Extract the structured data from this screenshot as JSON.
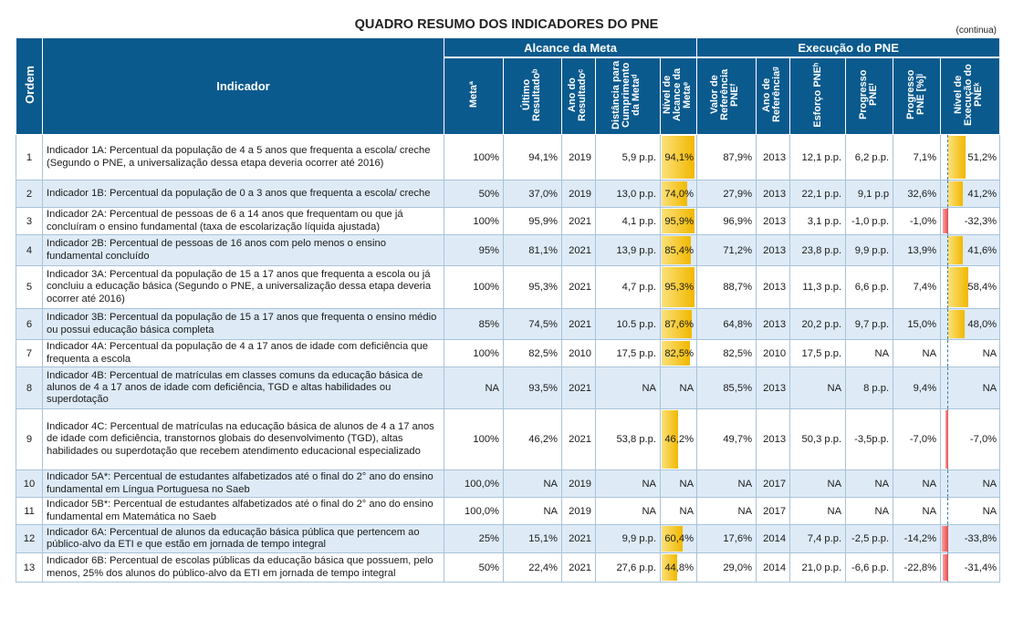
{
  "title": "QUADRO RESUMO DOS INDICADORES DO PNE",
  "continua": "(continua)",
  "headers": {
    "ordem": "Ordem",
    "indicador": "Indicador",
    "alcance_group": "Alcance da Meta",
    "execucao_group": "Execução do PNE",
    "meta": "Metaª",
    "ultimo": "Último Resultadoᵇ",
    "ano": "Ano do Resultadoᶜ",
    "distancia": "Distância para Cumprimento da Metaᵈ",
    "nivel_alcance": "Nível de Alcance da Metaᵉ",
    "valor_ref": "Valor de Referência PNEᶠ",
    "ano_ref": "Ano de Referênciaᵍ",
    "esforco": "Esforço PNEʰ",
    "progresso": "Progresso PNEⁱ",
    "progresso_pct": "Progresso PNE [%]ʲ",
    "nivel_exec": "Nível de Execução do PNEᵏ"
  },
  "colors": {
    "header_bg": "#0b5a8e",
    "alt_row": "#deebf7",
    "bar_yellow": "#f1b800",
    "bar_red": "#e84b4b"
  },
  "rows": [
    {
      "ordem": "1",
      "indicador": "Indicador 1A: Percentual da população de 4 a 5 anos que frequenta a escola/ creche (Segundo o PNE, a universalização dessa etapa deveria ocorrer até 2016)",
      "meta": "100%",
      "ultimo": "94,1%",
      "ano": "2019",
      "dist": "5,9 p.p.",
      "nivel": "94,1%",
      "nivel_frac": 0.941,
      "valor_ref": "87,9%",
      "ano_ref": "2013",
      "esforco": "12,1 p.p.",
      "progresso": "6,2 p.p.",
      "progresso_pct": "7,1%",
      "nivel_exec": "51,2%",
      "exec_frac": 0.512
    },
    {
      "ordem": "2",
      "indicador": "Indicador 1B: Percentual da população de 0 a 3 anos que frequenta a escola/ creche",
      "meta": "50%",
      "ultimo": "37,0%",
      "ano": "2019",
      "dist": "13,0 p.p.",
      "nivel": "74,0%",
      "nivel_frac": 0.74,
      "valor_ref": "27,9%",
      "ano_ref": "2013",
      "esforco": "22,1 p.p.",
      "progresso": "9,1 p.p",
      "progresso_pct": "32,6%",
      "nivel_exec": "41,2%",
      "exec_frac": 0.412
    },
    {
      "ordem": "3",
      "indicador": "Indicador 2A: Percentual de pessoas de 6 a 14 anos que frequentam ou que já concluíram o ensino fundamental (taxa de escolarização líquida ajustada)",
      "meta": "100%",
      "ultimo": "95,9%",
      "ano": "2021",
      "dist": "4,1 p.p.",
      "nivel": "95,9%",
      "nivel_frac": 0.959,
      "valor_ref": "96,9%",
      "ano_ref": "2013",
      "esforco": "3,1 p.p.",
      "progresso": "-1,0 p.p.",
      "progresso_pct": "-1,0%",
      "nivel_exec": "-32,3%",
      "exec_frac": -0.323
    },
    {
      "ordem": "4",
      "indicador": "Indicador 2B: Percentual de pessoas de 16 anos com pelo menos o ensino fundamental concluído",
      "meta": "95%",
      "ultimo": "81,1%",
      "ano": "2021",
      "dist": "13,9 p.p.",
      "nivel": "85,4%",
      "nivel_frac": 0.854,
      "valor_ref": "71,2%",
      "ano_ref": "2013",
      "esforco": "23,8 p.p.",
      "progresso": "9,9 p.p.",
      "progresso_pct": "13,9%",
      "nivel_exec": "41,6%",
      "exec_frac": 0.416
    },
    {
      "ordem": "5",
      "indicador": "Indicador 3A: Percentual da população de 15 a 17 anos que frequenta a escola ou já concluiu a educação básica (Segundo o PNE, a universalização dessa etapa deveria ocorrer até 2016)",
      "meta": "100%",
      "ultimo": "95,3%",
      "ano": "2021",
      "dist": "4,7 p.p.",
      "nivel": "95,3%",
      "nivel_frac": 0.953,
      "valor_ref": "88,7%",
      "ano_ref": "2013",
      "esforco": "11,3 p.p.",
      "progresso": "6,6 p.p.",
      "progresso_pct": "7,4%",
      "nivel_exec": "58,4%",
      "exec_frac": 0.584
    },
    {
      "ordem": "6",
      "indicador": "Indicador 3B: Percentual da população de 15 a 17 anos que frequenta o ensino médio ou possui educação básica completa",
      "meta": "85%",
      "ultimo": "74,5%",
      "ano": "2021",
      "dist": "10.5 p.p.",
      "nivel": "87,6%",
      "nivel_frac": 0.876,
      "valor_ref": "64,8%",
      "ano_ref": "2013",
      "esforco": "20,2 p.p.",
      "progresso": "9,7 p.p.",
      "progresso_pct": "15,0%",
      "nivel_exec": "48,0%",
      "exec_frac": 0.48
    },
    {
      "ordem": "7",
      "indicador": "Indicador 4A: Percentual da população de 4 a 17 anos de idade com deficiência que frequenta a escola",
      "meta": "100%",
      "ultimo": "82,5%",
      "ano": "2010",
      "dist": "17,5 p.p.",
      "nivel": "82,5%",
      "nivel_frac": 0.825,
      "valor_ref": "82,5%",
      "ano_ref": "2010",
      "esforco": "17,5 p.p.",
      "progresso": "NA",
      "progresso_pct": "NA",
      "nivel_exec": "NA",
      "exec_frac": 0
    },
    {
      "ordem": "8",
      "indicador": "Indicador 4B: Percentual de matrículas em classes comuns da educação básica de alunos de 4 a 17 anos de idade com deficiência, TGD e altas habilidades ou superdotação",
      "meta": "NA",
      "ultimo": "93,5%",
      "ano": "2021",
      "dist": "NA",
      "nivel": "NA",
      "nivel_frac": 0,
      "valor_ref": "85,5%",
      "ano_ref": "2013",
      "esforco": "NA",
      "progresso": "8 p.p.",
      "progresso_pct": "9,4%",
      "nivel_exec": "NA",
      "exec_frac": 0
    },
    {
      "ordem": "9",
      "indicador": "Indicador 4C: Percentual de matrículas na educação básica de alunos de 4 a 17 anos de idade com deficiência, transtornos globais do desenvolvimento (TGD), altas habilidades ou superdotação que recebem atendimento educacional especializado",
      "meta": "100%",
      "ultimo": "46,2%",
      "ano": "2021",
      "dist": "53,8 p.p.",
      "nivel": "46,2%",
      "nivel_frac": 0.462,
      "valor_ref": "49,7%",
      "ano_ref": "2013",
      "esforco": "50,3 p.p.",
      "progresso": "-3,5p.p.",
      "progresso_pct": "-7,0%",
      "nivel_exec": "-7,0%",
      "exec_frac": -0.07
    },
    {
      "ordem": "10",
      "indicador": "Indicador 5A*: Percentual de estudantes alfabetizados até o final do 2° ano do ensino fundamental em Língua Portuguesa no Saeb",
      "meta": "100,0%",
      "ultimo": "NA",
      "ano": "2019",
      "dist": "NA",
      "nivel": "NA",
      "nivel_frac": 0,
      "valor_ref": "NA",
      "ano_ref": "2017",
      "esforco": "NA",
      "progresso": "NA",
      "progresso_pct": "NA",
      "nivel_exec": "NA",
      "exec_frac": 0
    },
    {
      "ordem": "11",
      "indicador": "Indicador 5B*: Percentual de estudantes alfabetizados até o final do 2° ano do ensino fundamental em Matemática no Saeb",
      "meta": "100,0%",
      "ultimo": "NA",
      "ano": "2019",
      "dist": "NA",
      "nivel": "NA",
      "nivel_frac": 0,
      "valor_ref": "NA",
      "ano_ref": "2017",
      "esforco": "NA",
      "progresso": "NA",
      "progresso_pct": "NA",
      "nivel_exec": "NA",
      "exec_frac": 0
    },
    {
      "ordem": "12",
      "indicador": "Indicador 6A: Percentual de alunos da educação básica pública que pertencem ao público-alvo da ETI e que estão em jornada de tempo integral",
      "meta": "25%",
      "ultimo": "15,1%",
      "ano": "2021",
      "dist": "9,9 p.p.",
      "nivel": "60,4%",
      "nivel_frac": 0.604,
      "valor_ref": "17,6%",
      "ano_ref": "2014",
      "esforco": "7,4 p.p.",
      "progresso": "-2,5 p.p.",
      "progresso_pct": "-14,2%",
      "nivel_exec": "-33,8%",
      "exec_frac": -0.338
    },
    {
      "ordem": "13",
      "indicador": "Indicador 6B: Percentual de escolas públicas da educação básica que possuem, pelo menos, 25% dos alunos do público-alvo da ETI em jornada de tempo integral",
      "meta": "50%",
      "ultimo": "22,4%",
      "ano": "2021",
      "dist": "27,6 p.p.",
      "nivel": "44,8%",
      "nivel_frac": 0.448,
      "valor_ref": "29,0%",
      "ano_ref": "2014",
      "esforco": "21,0 p.p.",
      "progresso": "-6,6 p.p.",
      "progresso_pct": "-22,8%",
      "nivel_exec": "-31,4%",
      "exec_frac": -0.314
    }
  ]
}
